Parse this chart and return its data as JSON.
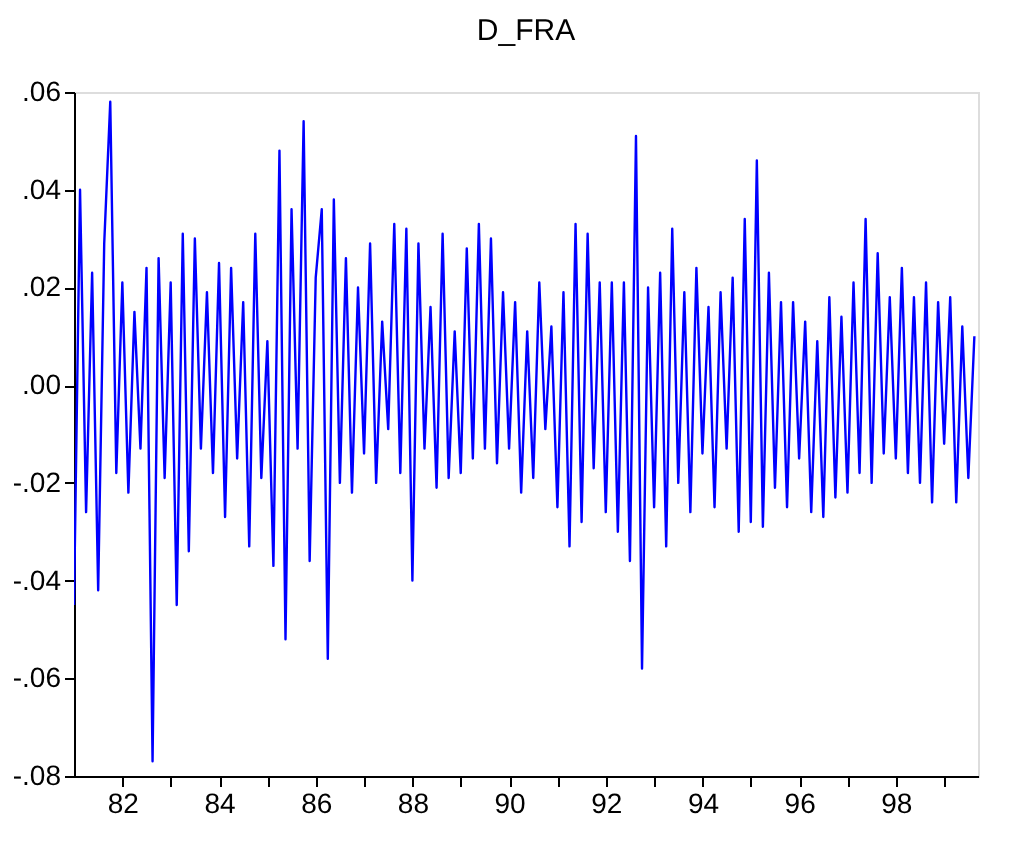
{
  "chart_data": {
    "type": "line",
    "title": "D_FRA",
    "x": [
      1981.0,
      1981.125,
      1981.25,
      1981.375,
      1981.5,
      1981.625,
      1981.75,
      1981.875,
      1982.0,
      1982.125,
      1982.25,
      1982.375,
      1982.5,
      1982.625,
      1982.75,
      1982.875,
      1983.0,
      1983.125,
      1983.25,
      1983.375,
      1983.5,
      1983.625,
      1983.75,
      1983.875,
      1984.0,
      1984.125,
      1984.25,
      1984.375,
      1984.5,
      1984.625,
      1984.75,
      1984.875,
      1985.0,
      1985.125,
      1985.25,
      1985.375,
      1985.5,
      1985.625,
      1985.75,
      1985.875,
      1986.0,
      1986.125,
      1986.25,
      1986.375,
      1986.5,
      1986.625,
      1986.75,
      1986.875,
      1987.0,
      1987.125,
      1987.25,
      1987.375,
      1987.5,
      1987.625,
      1987.75,
      1987.875,
      1988.0,
      1988.125,
      1988.25,
      1988.375,
      1988.5,
      1988.625,
      1988.75,
      1988.875,
      1989.0,
      1989.125,
      1989.25,
      1989.375,
      1989.5,
      1989.625,
      1989.75,
      1989.875,
      1990.0,
      1990.125,
      1990.25,
      1990.375,
      1990.5,
      1990.625,
      1990.75,
      1990.875,
      1991.0,
      1991.125,
      1991.25,
      1991.375,
      1991.5,
      1991.625,
      1991.75,
      1991.875,
      1992.0,
      1992.125,
      1992.25,
      1992.375,
      1992.5,
      1992.625,
      1992.75,
      1992.875,
      1993.0,
      1993.125,
      1993.25,
      1993.375,
      1993.5,
      1993.625,
      1993.75,
      1993.875,
      1994.0,
      1994.125,
      1994.25,
      1994.375,
      1994.5,
      1994.625,
      1994.75,
      1994.875,
      1995.0,
      1995.125,
      1995.25,
      1995.375,
      1995.5,
      1995.625,
      1995.75,
      1995.875,
      1996.0,
      1996.125,
      1996.25,
      1996.375,
      1996.5,
      1996.625,
      1996.75,
      1996.875,
      1997.0,
      1997.125,
      1997.25,
      1997.375,
      1997.5,
      1997.625,
      1997.75,
      1997.875,
      1998.0,
      1998.125,
      1998.25,
      1998.375,
      1998.5,
      1998.625,
      1998.75,
      1998.875,
      1999.0,
      1999.125,
      1999.25,
      1999.375,
      1999.5,
      1999.625
    ],
    "series": [
      {
        "color": "#0000ff",
        "values": [
          -0.045,
          0.04,
          -0.026,
          0.023,
          -0.042,
          0.029,
          0.058,
          -0.018,
          0.021,
          -0.022,
          0.015,
          -0.013,
          0.024,
          -0.077,
          0.026,
          -0.019,
          0.021,
          -0.045,
          0.031,
          -0.034,
          0.03,
          -0.013,
          0.019,
          -0.018,
          0.025,
          -0.027,
          0.024,
          -0.015,
          0.017,
          -0.033,
          0.031,
          -0.019,
          0.009,
          -0.037,
          0.048,
          -0.052,
          0.036,
          -0.013,
          0.054,
          -0.036,
          0.022,
          0.036,
          -0.056,
          0.038,
          -0.02,
          0.026,
          -0.022,
          0.02,
          -0.014,
          0.029,
          -0.02,
          0.013,
          -0.009,
          0.033,
          -0.018,
          0.032,
          -0.04,
          0.029,
          -0.013,
          0.016,
          -0.021,
          0.031,
          -0.019,
          0.011,
          -0.018,
          0.028,
          -0.015,
          0.033,
          -0.013,
          0.03,
          -0.016,
          0.019,
          -0.013,
          0.017,
          -0.022,
          0.011,
          -0.019,
          0.021,
          -0.009,
          0.012,
          -0.025,
          0.019,
          -0.033,
          0.033,
          -0.028,
          0.031,
          -0.017,
          0.021,
          -0.026,
          0.021,
          -0.03,
          0.021,
          -0.036,
          0.051,
          -0.058,
          0.02,
          -0.025,
          0.023,
          -0.033,
          0.032,
          -0.02,
          0.019,
          -0.026,
          0.024,
          -0.014,
          0.016,
          -0.025,
          0.019,
          -0.013,
          0.022,
          -0.03,
          0.034,
          -0.028,
          0.046,
          -0.029,
          0.023,
          -0.021,
          0.017,
          -0.025,
          0.017,
          -0.015,
          0.013,
          -0.026,
          0.009,
          -0.027,
          0.018,
          -0.023,
          0.014,
          -0.022,
          0.021,
          -0.018,
          0.034,
          -0.02,
          0.027,
          -0.014,
          0.018,
          -0.015,
          0.024,
          -0.018,
          0.018,
          -0.02,
          0.021,
          -0.024,
          0.017,
          -0.012,
          0.018,
          -0.024,
          0.012,
          -0.019,
          0.01
        ]
      }
    ],
    "xlim": [
      1981.0,
      1999.7
    ],
    "xticks": [
      {
        "value": 1982,
        "label": "82"
      },
      {
        "value": 1983,
        "label": null
      },
      {
        "value": 1984,
        "label": "84"
      },
      {
        "value": 1985,
        "label": null
      },
      {
        "value": 1986,
        "label": "86"
      },
      {
        "value": 1987,
        "label": null
      },
      {
        "value": 1988,
        "label": "88"
      },
      {
        "value": 1989,
        "label": null
      },
      {
        "value": 1990,
        "label": "90"
      },
      {
        "value": 1991,
        "label": null
      },
      {
        "value": 1992,
        "label": "92"
      },
      {
        "value": 1993,
        "label": null
      },
      {
        "value": 1994,
        "label": "94"
      },
      {
        "value": 1995,
        "label": null
      },
      {
        "value": 1996,
        "label": "96"
      },
      {
        "value": 1997,
        "label": null
      },
      {
        "value": 1998,
        "label": "98"
      },
      {
        "value": 1999,
        "label": null
      }
    ],
    "ylim": [
      -0.08,
      0.06
    ],
    "yticks": [
      {
        "value": -0.08,
        "label": "-.08"
      },
      {
        "value": -0.06,
        "label": "-.06"
      },
      {
        "value": -0.04,
        "label": "-.04"
      },
      {
        "value": -0.02,
        "label": "-.02"
      },
      {
        "value": 0.0,
        "label": ".00"
      },
      {
        "value": 0.02,
        "label": ".02"
      },
      {
        "value": 0.04,
        "label": ".04"
      },
      {
        "value": 0.06,
        "label": ".06"
      }
    ],
    "grid": false,
    "line_style": "solid",
    "marker": "none"
  }
}
